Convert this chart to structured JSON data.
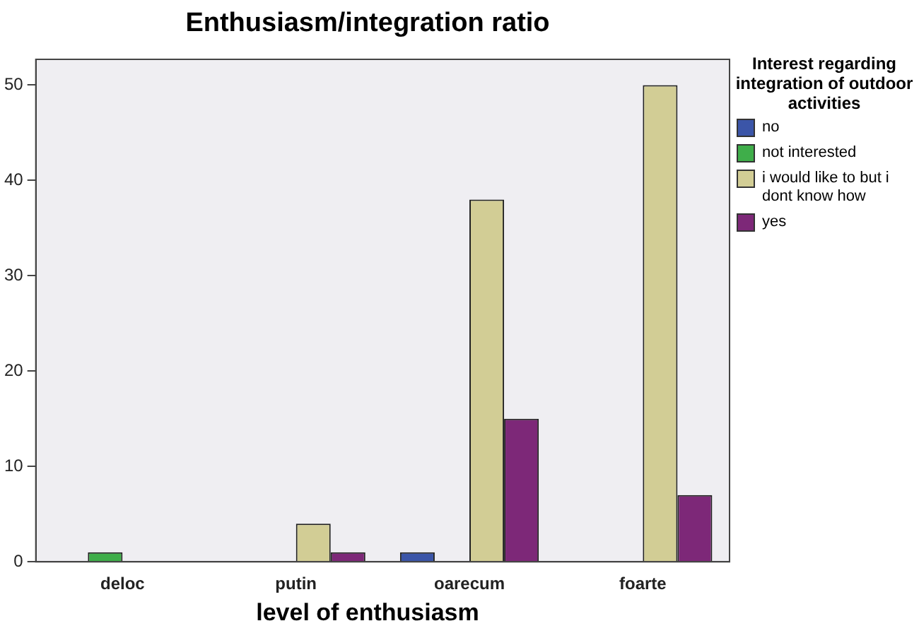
{
  "chart_data": {
    "type": "bar",
    "title": "Enthusiasm/integration ratio",
    "xlabel": "level of enthusiasm",
    "legend_title": "Interest regarding integration of outdoor activities",
    "categories": [
      "deloc",
      "putin",
      "oarecum",
      "foarte"
    ],
    "series": [
      {
        "name": "no",
        "color": "#3b55a8",
        "values": [
          null,
          null,
          1,
          null
        ]
      },
      {
        "name": "not interested",
        "color": "#3fae4a",
        "values": [
          1,
          null,
          null,
          null
        ]
      },
      {
        "name": "i would like to but i dont know how",
        "color": "#d2cd95",
        "values": [
          null,
          4,
          38,
          50
        ]
      },
      {
        "name": "yes",
        "color": "#7d2878",
        "values": [
          null,
          1,
          15,
          7
        ]
      }
    ],
    "ylim": [
      0,
      52.7
    ],
    "yticks": [
      0,
      10,
      20,
      30,
      40,
      50
    ],
    "grid": false,
    "legend": "right"
  }
}
